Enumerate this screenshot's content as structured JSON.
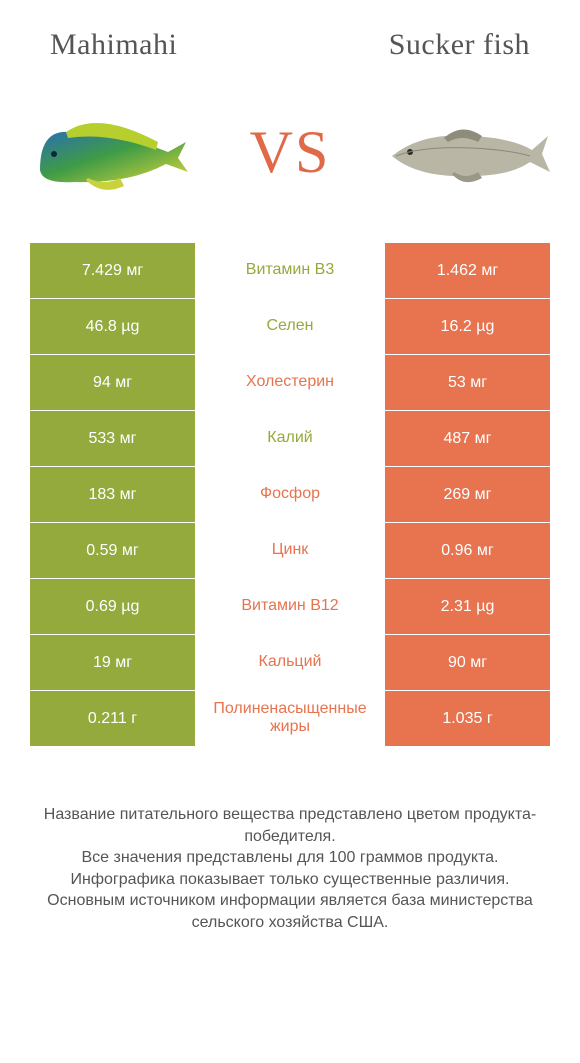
{
  "colors": {
    "green": "#94aa3d",
    "orange": "#e7734f",
    "vs": "#e06a47",
    "heading": "#555555",
    "footer_text": "#555555",
    "white": "#ffffff"
  },
  "header": {
    "left_title": "Mahimahi",
    "right_title": "Sucker fish",
    "vs_label": "VS"
  },
  "rows": [
    {
      "left": "7.429 мг",
      "mid": "Витамин B3",
      "right": "1.462 мг",
      "winner": "left"
    },
    {
      "left": "46.8 µg",
      "mid": "Селен",
      "right": "16.2 µg",
      "winner": "left"
    },
    {
      "left": "94 мг",
      "mid": "Холестерин",
      "right": "53 мг",
      "winner": "right"
    },
    {
      "left": "533 мг",
      "mid": "Калий",
      "right": "487 мг",
      "winner": "left"
    },
    {
      "left": "183 мг",
      "mid": "Фосфор",
      "right": "269 мг",
      "winner": "right"
    },
    {
      "left": "0.59 мг",
      "mid": "Цинк",
      "right": "0.96 мг",
      "winner": "right"
    },
    {
      "left": "0.69 µg",
      "mid": "Витамин B12",
      "right": "2.31 µg",
      "winner": "right"
    },
    {
      "left": "19 мг",
      "mid": "Кальций",
      "right": "90 мг",
      "winner": "right"
    },
    {
      "left": "0.211 г",
      "mid": "Полиненасыщенные жиры",
      "right": "1.035 г",
      "winner": "right"
    }
  ],
  "footer": {
    "line1": "Название питательного вещества представлено цветом продукта-победителя.",
    "line2": "Все значения представлены для 100 граммов продукта.",
    "line3": "Инфографика показывает только существенные различия.",
    "line4": "Основным источником информации является база министерства сельского хозяйства США."
  }
}
